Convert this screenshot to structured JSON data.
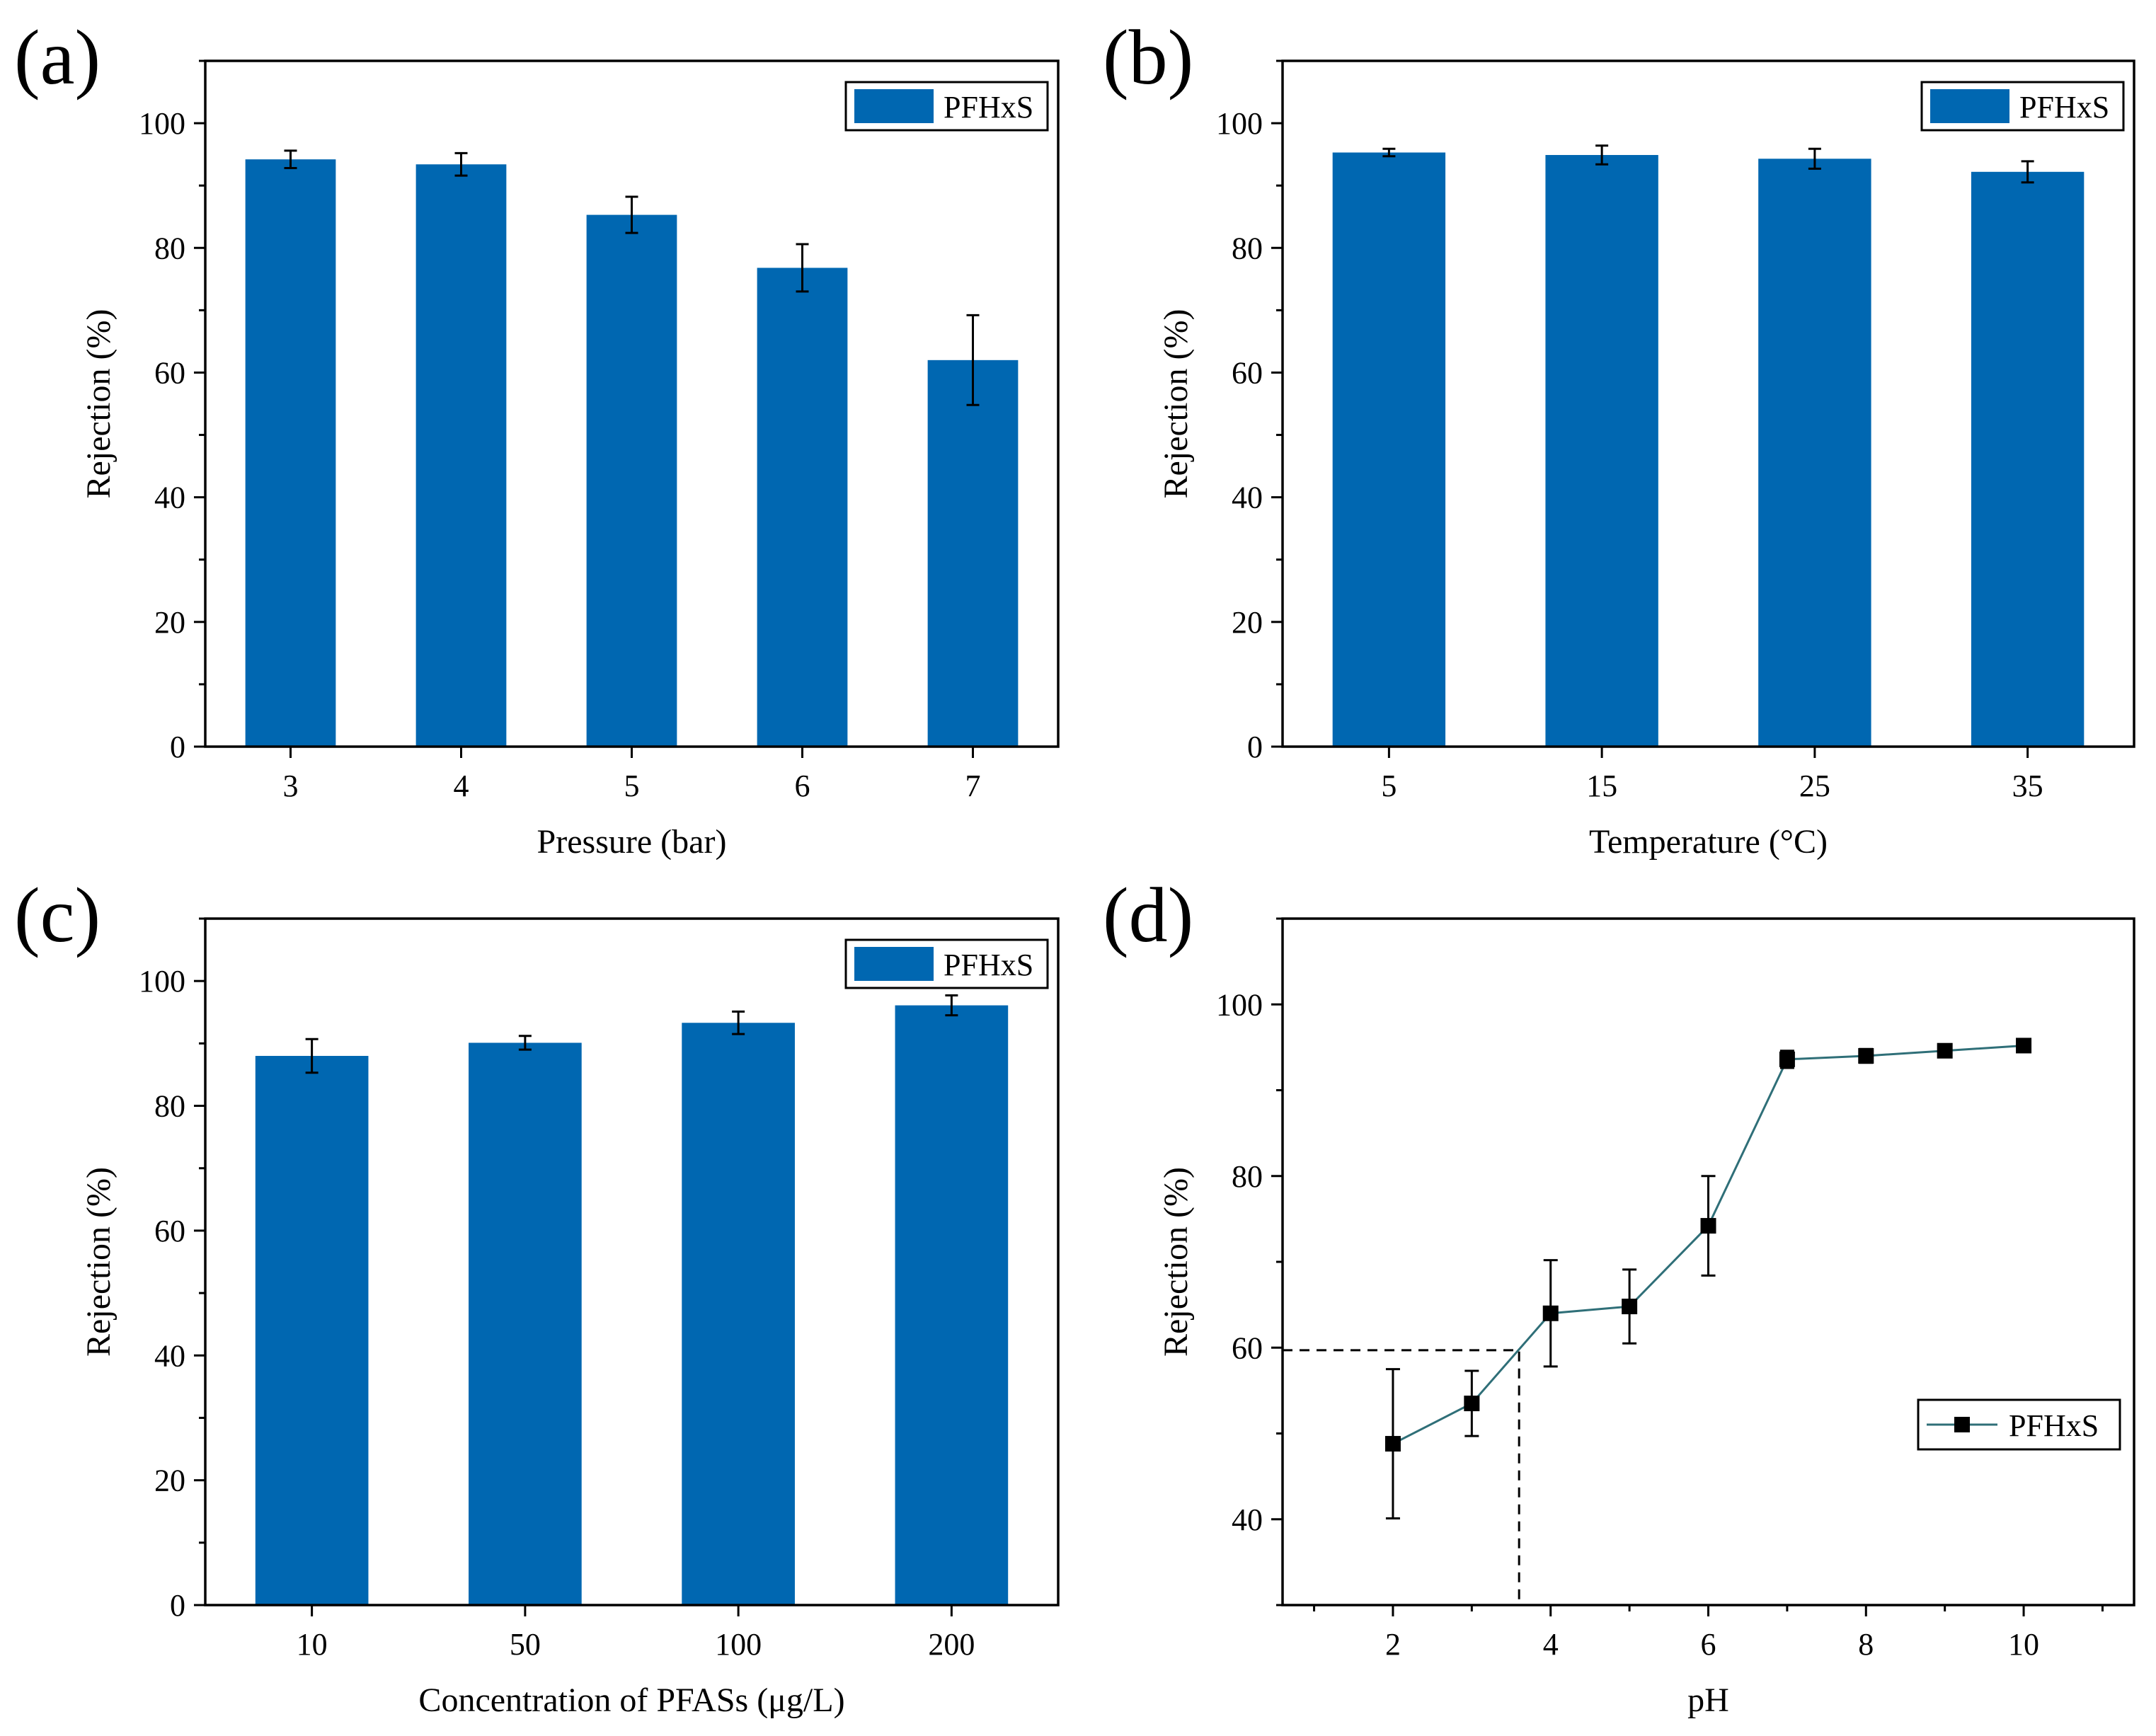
{
  "colors": {
    "bar": "#0067b1",
    "line": "#2f6f78",
    "marker": "#000000",
    "axis": "#000000"
  },
  "chart_data": [
    {
      "id": "a",
      "panel_label": "(a)",
      "type": "bar",
      "categories": [
        "3",
        "4",
        "5",
        "6",
        "7"
      ],
      "series": [
        {
          "name": "PFHxS",
          "values": [
            94.2,
            93.4,
            85.3,
            76.8,
            62.0
          ],
          "errors": [
            1.4,
            1.8,
            2.9,
            3.8,
            7.2
          ]
        }
      ],
      "xlabel": "Pressure (bar)",
      "ylabel": "Rejection (%)",
      "ylim": [
        0,
        110
      ],
      "yticks": [
        0,
        20,
        40,
        60,
        80,
        100
      ],
      "legend": "top-right",
      "grid": false
    },
    {
      "id": "b",
      "panel_label": "(b)",
      "type": "bar",
      "categories": [
        "5",
        "15",
        "25",
        "35"
      ],
      "series": [
        {
          "name": "PFHxS",
          "values": [
            95.3,
            94.9,
            94.3,
            92.2
          ],
          "errors": [
            0.6,
            1.5,
            1.6,
            1.7
          ]
        }
      ],
      "xlabel": "Temperature (°C)",
      "ylabel": "Rejection (%)",
      "ylim": [
        0,
        110
      ],
      "yticks": [
        0,
        20,
        40,
        60,
        80,
        100
      ],
      "legend": "top-right",
      "grid": false
    },
    {
      "id": "c",
      "panel_label": "(c)",
      "type": "bar",
      "categories": [
        "10",
        "50",
        "100",
        "200"
      ],
      "series": [
        {
          "name": "PFHxS",
          "values": [
            88.0,
            90.1,
            93.3,
            96.1
          ],
          "errors": [
            2.7,
            1.1,
            1.8,
            1.6
          ]
        }
      ],
      "xlabel": "Concentration of PFASs (μg/L)",
      "ylabel": "Rejection (%)",
      "ylim": [
        0,
        110
      ],
      "yticks": [
        0,
        20,
        40,
        60,
        80,
        100
      ],
      "legend": "top-right",
      "grid": false
    },
    {
      "id": "d",
      "panel_label": "(d)",
      "type": "line",
      "x": [
        2,
        3,
        4,
        5,
        6,
        7,
        8,
        9,
        10
      ],
      "series": [
        {
          "name": "PFHxS",
          "values": [
            48.8,
            53.5,
            64.0,
            64.8,
            74.2,
            93.6,
            94.0,
            94.6,
            95.2
          ],
          "errors": [
            8.7,
            3.8,
            6.2,
            4.3,
            5.8,
            1.0,
            0.8,
            0.4,
            0.4
          ]
        }
      ],
      "reference_point": {
        "x": 3.6,
        "y": 59.7
      },
      "xlabel": "pH",
      "ylabel": "Rejection (%)",
      "xlim": [
        0.6,
        11.4
      ],
      "ylim": [
        30,
        110
      ],
      "xticks": [
        2,
        4,
        6,
        8,
        10
      ],
      "yticks": [
        40,
        60,
        80,
        100
      ],
      "legend": "bottom-right",
      "grid": false
    }
  ]
}
